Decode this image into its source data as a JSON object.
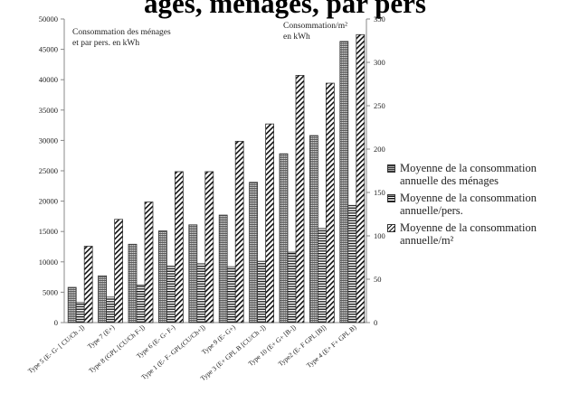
{
  "header": {
    "title_fragment": "ages, ménages, par pers"
  },
  "chart_data": {
    "type": "bar",
    "title": "",
    "categories": [
      "Type 5 (E- G- [ CU/Ch -])",
      "Type 7 (E+)",
      "Type 8 (GPL [CU/Ch F-])",
      "Type 6 (E- G- F-)",
      "Type 1 (E- F- GPL(CU/Ch+])",
      "Type 9 (E- G+)",
      "Type 3 (E+ GPL B [CU/Ch -])",
      "Type 10 (E+ G+ [B-])",
      "Type2 (E- F GPL [B])",
      "Type 4 (E+ F+ GPL B)"
    ],
    "series": [
      {
        "name": "Moyenne de la consommation annuelle des ménages",
        "axis": "left",
        "pattern": "dots",
        "values": [
          5800,
          7700,
          12900,
          15100,
          16100,
          17700,
          23100,
          27800,
          30800,
          46300
        ]
      },
      {
        "name": "Moyenne de la consommation annuelle/pers.",
        "axis": "left",
        "pattern": "horizontal",
        "values": [
          3300,
          4200,
          6200,
          9300,
          9700,
          9200,
          10100,
          11600,
          15500,
          19300
        ]
      },
      {
        "name": "Moyenne de la consommation annuelle/m²",
        "axis": "right",
        "pattern": "diagonal",
        "values": [
          88,
          119,
          139,
          174,
          174,
          209,
          229,
          285,
          276,
          332
        ]
      }
    ],
    "left_axis": {
      "label_line1": "Consommation des ménages",
      "label_line2": "et par pers. en kWh",
      "ylim": [
        0,
        50000
      ],
      "ticks": [
        "0",
        "5000",
        "10000",
        "15000",
        "20000",
        "25000",
        "30000",
        "35000",
        "40000",
        "45000",
        "50000"
      ]
    },
    "right_axis": {
      "label_line1": "Consommation/m²",
      "label_line2": "en kWh",
      "ylim": [
        0,
        350
      ],
      "ticks": [
        "0",
        "50",
        "100",
        "150",
        "200",
        "250",
        "300",
        "350"
      ]
    },
    "grid": false,
    "legend_position": "right",
    "legend": [
      {
        "line1": "Moyenne de la consommation",
        "line2": "annuelle des ménages"
      },
      {
        "line1": "Moyenne de la consommation",
        "line2": "annuelle/pers."
      },
      {
        "line1": "Moyenne de la consommation",
        "line2": "annuelle/m²"
      }
    ]
  }
}
